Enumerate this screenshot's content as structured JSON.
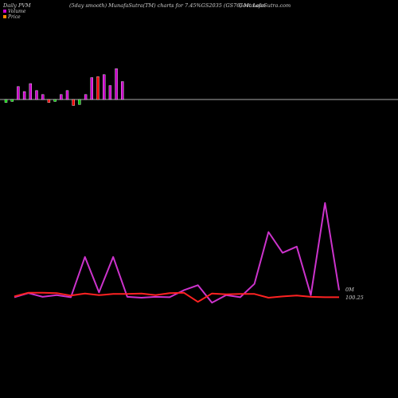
{
  "header": {
    "title_left": "Daily PVM",
    "title_center": "(5day smooth) MunafaSutra(TM) charts for 7.45%GS2035 (GS76) MunafaSutra.com",
    "title_right": "Govt  Loan"
  },
  "legend": {
    "volume_label": "Volume",
    "price_label": "Price"
  },
  "colors": {
    "background": "#000000",
    "volume_up": "#cc00cc",
    "volume_down_red": "#ff0000",
    "volume_down_green": "#00cc00",
    "volume_white": "#ffffff",
    "baseline": "#aaaaaa",
    "price_line": "#ff2222",
    "volume_line": "#cc33cc",
    "legend_volume": "#cc00cc",
    "legend_price": "#ff8800"
  },
  "chart_data": {
    "type": "bar",
    "volume_bars": {
      "ylim": [
        -6,
        32
      ],
      "values": [
        -3,
        -2,
        13,
        8,
        16,
        9,
        5,
        -3,
        -2,
        5,
        9,
        -6,
        -5,
        5,
        22,
        23,
        25,
        14,
        31,
        18
      ],
      "colors": [
        "green",
        "green",
        "up",
        "up",
        "up",
        "up",
        "up",
        "red",
        "green",
        "up",
        "up",
        "red",
        "green",
        "up",
        "up",
        "red",
        "up",
        "up",
        "up",
        "up"
      ]
    },
    "lines": {
      "type": "line",
      "ylim": [
        0,
        250
      ],
      "volume_line": [
        3,
        13,
        4,
        8,
        3,
        100,
        15,
        100,
        4,
        2,
        4,
        3,
        20,
        32,
        -10,
        8,
        3,
        35,
        160,
        110,
        125,
        8,
        230,
        20
      ],
      "price_line": [
        5,
        14,
        14,
        13,
        7,
        12,
        8,
        11,
        11,
        12,
        8,
        13,
        14,
        -8,
        12,
        10,
        11,
        11,
        2,
        5,
        7,
        4,
        3,
        3
      ]
    },
    "annotations": {
      "volume_last": "0M",
      "price_last": "100.25"
    }
  }
}
